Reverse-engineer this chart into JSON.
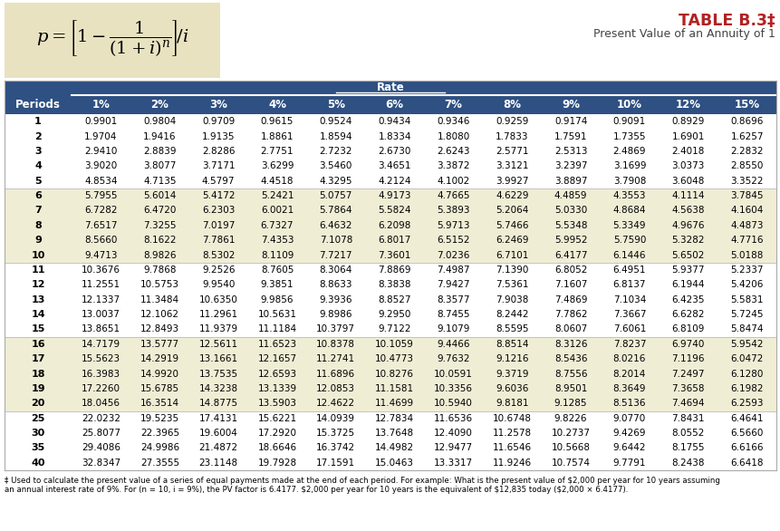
{
  "title": "TABLE B.3‡",
  "subtitle": "Present Value of an Annuity of 1",
  "rate_header": "Rate",
  "col_headers": [
    "Periods",
    "1%",
    "2%",
    "3%",
    "4%",
    "5%",
    "6%",
    "7%",
    "8%",
    "9%",
    "10%",
    "12%",
    "15%"
  ],
  "rows": [
    [
      1,
      0.9901,
      0.9804,
      0.9709,
      0.9615,
      0.9524,
      0.9434,
      0.9346,
      0.9259,
      0.9174,
      0.9091,
      0.8929,
      0.8696
    ],
    [
      2,
      1.9704,
      1.9416,
      1.9135,
      1.8861,
      1.8594,
      1.8334,
      1.808,
      1.7833,
      1.7591,
      1.7355,
      1.6901,
      1.6257
    ],
    [
      3,
      2.941,
      2.8839,
      2.8286,
      2.7751,
      2.7232,
      2.673,
      2.6243,
      2.5771,
      2.5313,
      2.4869,
      2.4018,
      2.2832
    ],
    [
      4,
      3.902,
      3.8077,
      3.7171,
      3.6299,
      3.546,
      3.4651,
      3.3872,
      3.3121,
      3.2397,
      3.1699,
      3.0373,
      2.855
    ],
    [
      5,
      4.8534,
      4.7135,
      4.5797,
      4.4518,
      4.3295,
      4.2124,
      4.1002,
      3.9927,
      3.8897,
      3.7908,
      3.6048,
      3.3522
    ],
    [
      6,
      5.7955,
      5.6014,
      5.4172,
      5.2421,
      5.0757,
      4.9173,
      4.7665,
      4.6229,
      4.4859,
      4.3553,
      4.1114,
      3.7845
    ],
    [
      7,
      6.7282,
      6.472,
      6.2303,
      6.0021,
      5.7864,
      5.5824,
      5.3893,
      5.2064,
      5.033,
      4.8684,
      4.5638,
      4.1604
    ],
    [
      8,
      7.6517,
      7.3255,
      7.0197,
      6.7327,
      6.4632,
      6.2098,
      5.9713,
      5.7466,
      5.5348,
      5.3349,
      4.9676,
      4.4873
    ],
    [
      9,
      8.566,
      8.1622,
      7.7861,
      7.4353,
      7.1078,
      6.8017,
      6.5152,
      6.2469,
      5.9952,
      5.759,
      5.3282,
      4.7716
    ],
    [
      10,
      9.4713,
      8.9826,
      8.5302,
      8.1109,
      7.7217,
      7.3601,
      7.0236,
      6.7101,
      6.4177,
      6.1446,
      5.6502,
      5.0188
    ],
    [
      11,
      10.3676,
      9.7868,
      9.2526,
      8.7605,
      8.3064,
      7.8869,
      7.4987,
      7.139,
      6.8052,
      6.4951,
      5.9377,
      5.2337
    ],
    [
      12,
      11.2551,
      10.5753,
      9.954,
      9.3851,
      8.8633,
      8.3838,
      7.9427,
      7.5361,
      7.1607,
      6.8137,
      6.1944,
      5.4206
    ],
    [
      13,
      12.1337,
      11.3484,
      10.635,
      9.9856,
      9.3936,
      8.8527,
      8.3577,
      7.9038,
      7.4869,
      7.1034,
      6.4235,
      5.5831
    ],
    [
      14,
      13.0037,
      12.1062,
      11.2961,
      10.5631,
      9.8986,
      9.295,
      8.7455,
      8.2442,
      7.7862,
      7.3667,
      6.6282,
      5.7245
    ],
    [
      15,
      13.8651,
      12.8493,
      11.9379,
      11.1184,
      10.3797,
      9.7122,
      9.1079,
      8.5595,
      8.0607,
      7.6061,
      6.8109,
      5.8474
    ],
    [
      16,
      14.7179,
      13.5777,
      12.5611,
      11.6523,
      10.8378,
      10.1059,
      9.4466,
      8.8514,
      8.3126,
      7.8237,
      6.974,
      5.9542
    ],
    [
      17,
      15.5623,
      14.2919,
      13.1661,
      12.1657,
      11.2741,
      10.4773,
      9.7632,
      9.1216,
      8.5436,
      8.0216,
      7.1196,
      6.0472
    ],
    [
      18,
      16.3983,
      14.992,
      13.7535,
      12.6593,
      11.6896,
      10.8276,
      10.0591,
      9.3719,
      8.7556,
      8.2014,
      7.2497,
      6.128
    ],
    [
      19,
      17.226,
      15.6785,
      14.3238,
      13.1339,
      12.0853,
      11.1581,
      10.3356,
      9.6036,
      8.9501,
      8.3649,
      7.3658,
      6.1982
    ],
    [
      20,
      18.0456,
      16.3514,
      14.8775,
      13.5903,
      12.4622,
      11.4699,
      10.594,
      9.8181,
      9.1285,
      8.5136,
      7.4694,
      6.2593
    ],
    [
      25,
      22.0232,
      19.5235,
      17.4131,
      15.6221,
      14.0939,
      12.7834,
      11.6536,
      10.6748,
      9.8226,
      9.077,
      7.8431,
      6.4641
    ],
    [
      30,
      25.8077,
      22.3965,
      19.6004,
      17.292,
      15.3725,
      13.7648,
      12.409,
      11.2578,
      10.2737,
      9.4269,
      8.0552,
      6.566
    ],
    [
      35,
      29.4086,
      24.9986,
      21.4872,
      18.6646,
      16.3742,
      14.4982,
      12.9477,
      11.6546,
      10.5668,
      9.6442,
      8.1755,
      6.6166
    ],
    [
      40,
      32.8347,
      27.3555,
      23.1148,
      19.7928,
      17.1591,
      15.0463,
      13.3317,
      11.9246,
      10.7574,
      9.7791,
      8.2438,
      6.6418
    ]
  ],
  "footnote_line1": "‡ Used to calculate the present value of a series of equal payments made at the end of each period. For example: What is the present value of $2,000 per year for 10 years assuming",
  "footnote_line2": "an annual interest rate of 9%. For (n = 10, i = 9%), the PV factor is 6.4177. $2,000 per year for 10 years is the equivalent of $12,835 today ($2,000 × 6.4177).",
  "header_bg": "#2E5082",
  "header_fg": "#FFFFFF",
  "formula_bg": "#E8E2C0",
  "alt_row_bg": "#F0EDD5",
  "white_row_bg": "#FFFFFF",
  "title_color": "#B22222",
  "subtitle_color": "#444444",
  "rate_bar_bg": "#2E5082",
  "rate_bar_fg": "#FFFFFF",
  "border_color": "#AAAAAA",
  "sep_line_color": "#BBBBBB"
}
